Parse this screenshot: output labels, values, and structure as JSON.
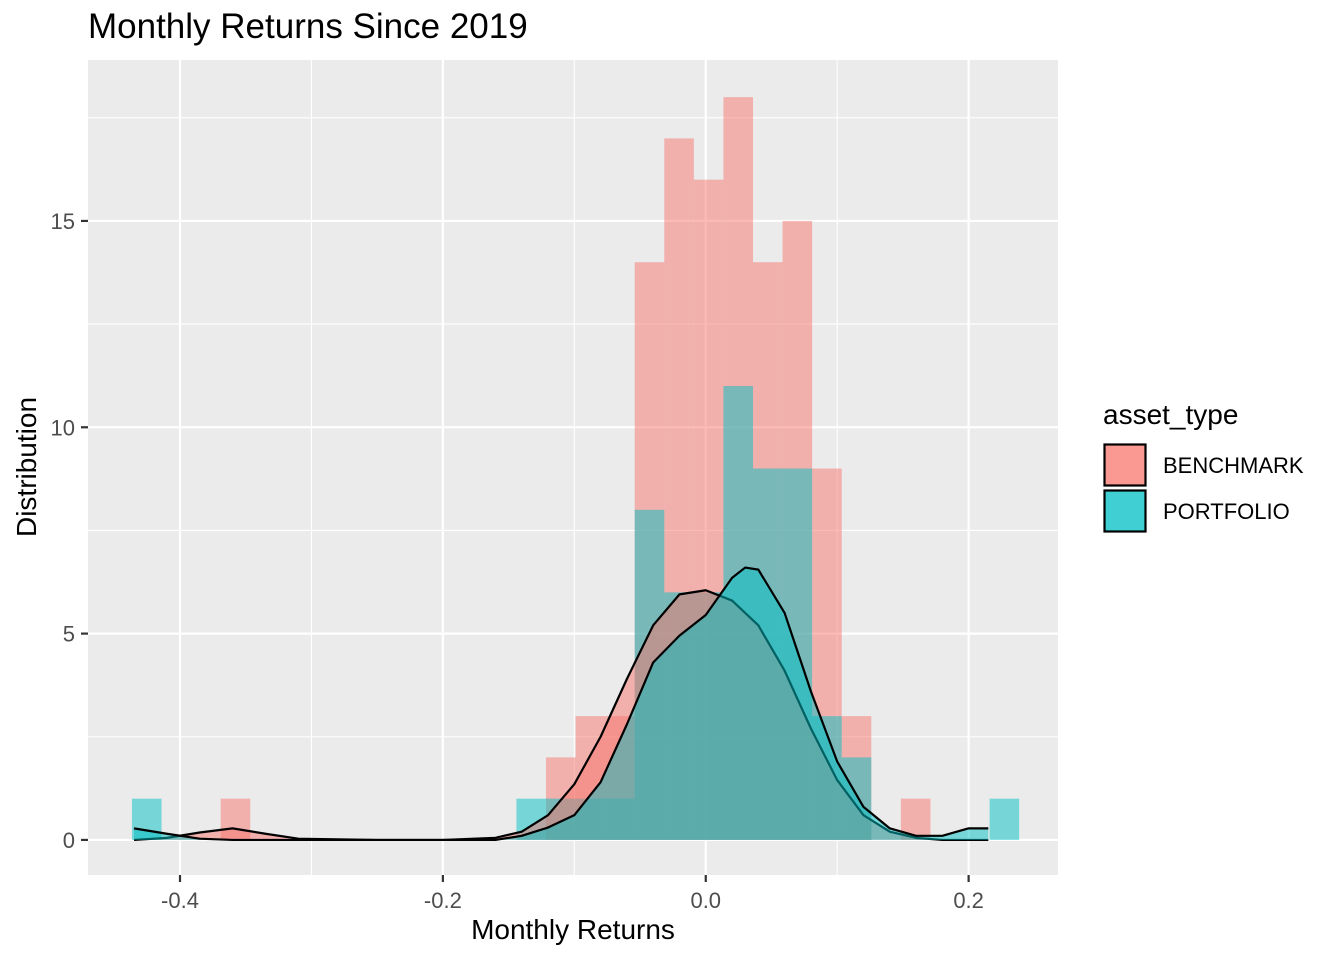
{
  "chart_data": {
    "type": "histogram",
    "title": "Monthly Returns Since 2019",
    "xlabel": "Monthly Returns",
    "ylabel": "Distribution",
    "xlim": [
      -0.47,
      0.268
    ],
    "ylim": [
      -0.85,
      18.9
    ],
    "x_ticks": [
      -0.4,
      -0.2,
      0.0,
      0.2
    ],
    "x_tick_labels": [
      "-0.4",
      "-0.2",
      "0.0",
      "0.2"
    ],
    "y_ticks": [
      0,
      5,
      10,
      15
    ],
    "y_tick_labels": [
      "0",
      "5",
      "10",
      "15"
    ],
    "grid": true,
    "legend_position": "right",
    "legend": {
      "title": "asset_type",
      "entries": [
        "BENCHMARK",
        "PORTFOLIO"
      ]
    },
    "bin_width": 0.0225,
    "series": [
      {
        "name": "BENCHMARK",
        "color": "#F8766D",
        "bins": [
          {
            "x": -0.3578,
            "count": 1
          },
          {
            "x": -0.1103,
            "count": 2
          },
          {
            "x": -0.0878,
            "count": 3
          },
          {
            "x": -0.0653,
            "count": 3
          },
          {
            "x": -0.0428,
            "count": 14
          },
          {
            "x": -0.0203,
            "count": 17
          },
          {
            "x": 0.0022,
            "count": 16
          },
          {
            "x": 0.0247,
            "count": 18
          },
          {
            "x": 0.0472,
            "count": 14
          },
          {
            "x": 0.0697,
            "count": 15
          },
          {
            "x": 0.0922,
            "count": 9
          },
          {
            "x": 0.1147,
            "count": 3
          },
          {
            "x": 0.1597,
            "count": 1
          }
        ],
        "density": {
          "x": [
            -0.435,
            -0.41,
            -0.385,
            -0.36,
            -0.335,
            -0.31,
            -0.25,
            -0.2,
            -0.16,
            -0.14,
            -0.12,
            -0.1,
            -0.08,
            -0.06,
            -0.04,
            -0.02,
            0.0,
            0.02,
            0.04,
            0.06,
            0.08,
            0.1,
            0.12,
            0.14,
            0.16,
            0.18,
            0.2,
            0.215
          ],
          "y": [
            0.0,
            0.05,
            0.18,
            0.28,
            0.15,
            0.03,
            0.0,
            0.0,
            0.05,
            0.2,
            0.6,
            1.35,
            2.5,
            3.9,
            5.2,
            5.95,
            6.05,
            5.8,
            5.2,
            4.1,
            2.7,
            1.45,
            0.6,
            0.2,
            0.05,
            0.0,
            0.0,
            0.0
          ]
        }
      },
      {
        "name": "PORTFOLIO",
        "color": "#00BFC4",
        "bins": [
          {
            "x": -0.4253,
            "count": 1
          },
          {
            "x": -0.1328,
            "count": 1
          },
          {
            "x": -0.1103,
            "count": 1
          },
          {
            "x": -0.0878,
            "count": 1
          },
          {
            "x": -0.0653,
            "count": 1
          },
          {
            "x": -0.0428,
            "count": 8
          },
          {
            "x": -0.0203,
            "count": 6
          },
          {
            "x": 0.0022,
            "count": 6
          },
          {
            "x": 0.0247,
            "count": 11
          },
          {
            "x": 0.0472,
            "count": 9
          },
          {
            "x": 0.0697,
            "count": 9
          },
          {
            "x": 0.0922,
            "count": 3
          },
          {
            "x": 0.1147,
            "count": 2
          },
          {
            "x": 0.2272,
            "count": 1
          }
        ],
        "density": {
          "x": [
            -0.435,
            -0.41,
            -0.385,
            -0.36,
            -0.31,
            -0.25,
            -0.2,
            -0.16,
            -0.14,
            -0.12,
            -0.1,
            -0.08,
            -0.06,
            -0.04,
            -0.02,
            0.0,
            0.02,
            0.03,
            0.04,
            0.06,
            0.08,
            0.1,
            0.12,
            0.14,
            0.16,
            0.18,
            0.2,
            0.215
          ],
          "y": [
            0.28,
            0.15,
            0.03,
            0.0,
            0.0,
            0.0,
            0.0,
            0.0,
            0.1,
            0.3,
            0.6,
            1.4,
            2.8,
            4.3,
            4.95,
            5.45,
            6.35,
            6.6,
            6.55,
            5.5,
            3.6,
            1.9,
            0.8,
            0.28,
            0.1,
            0.1,
            0.28,
            0.28
          ]
        }
      }
    ]
  }
}
